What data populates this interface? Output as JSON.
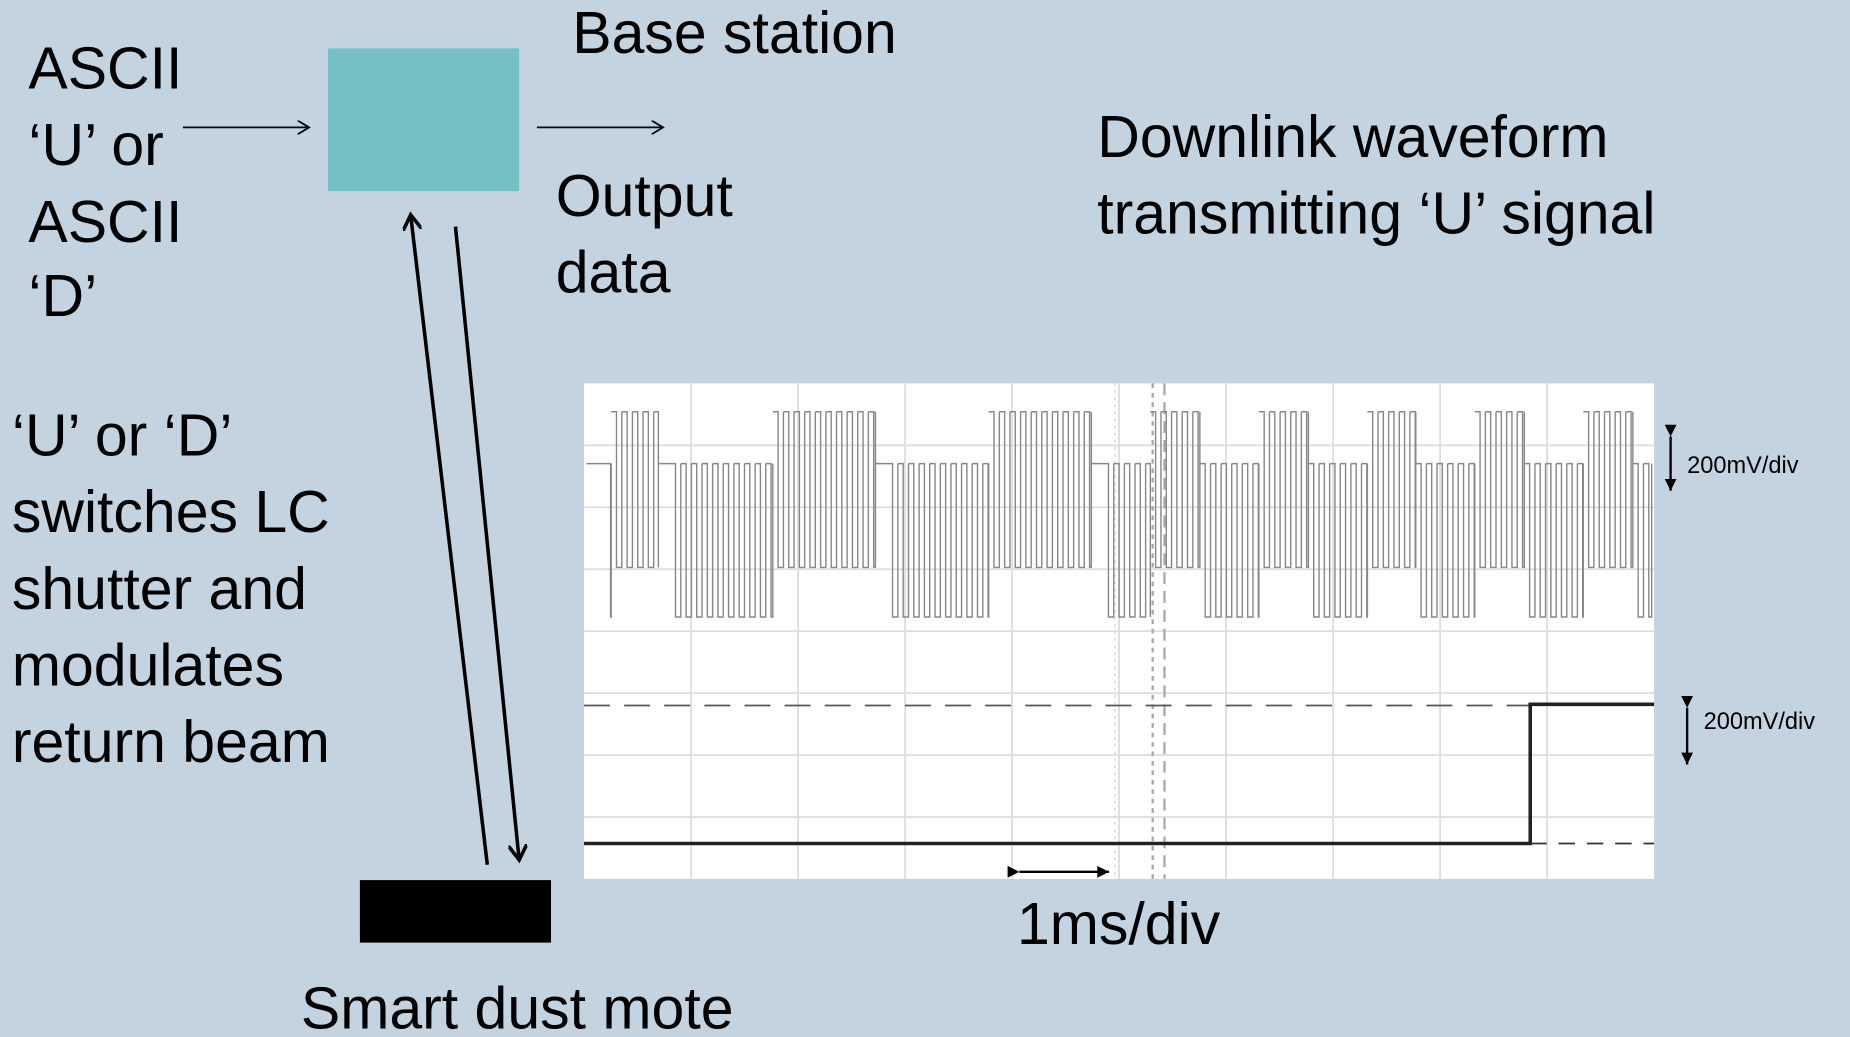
{
  "input_label": [
    "ASCII",
    "‘U’ or",
    "ASCII",
    "‘D’"
  ],
  "base_station": "Base station",
  "output_label": [
    "Output",
    "data"
  ],
  "waveform_title": [
    "Downlink waveform",
    "transmitting ‘U’ signal"
  ],
  "description": [
    "‘U’ or ‘D’",
    "switches LC",
    "shutter and",
    "modulates",
    "return beam"
  ],
  "scope": {
    "channel_scales": [
      "200mV/div",
      "200mV/div"
    ],
    "time_scale": "1ms/div"
  },
  "mote_label": "Smart dust mote"
}
